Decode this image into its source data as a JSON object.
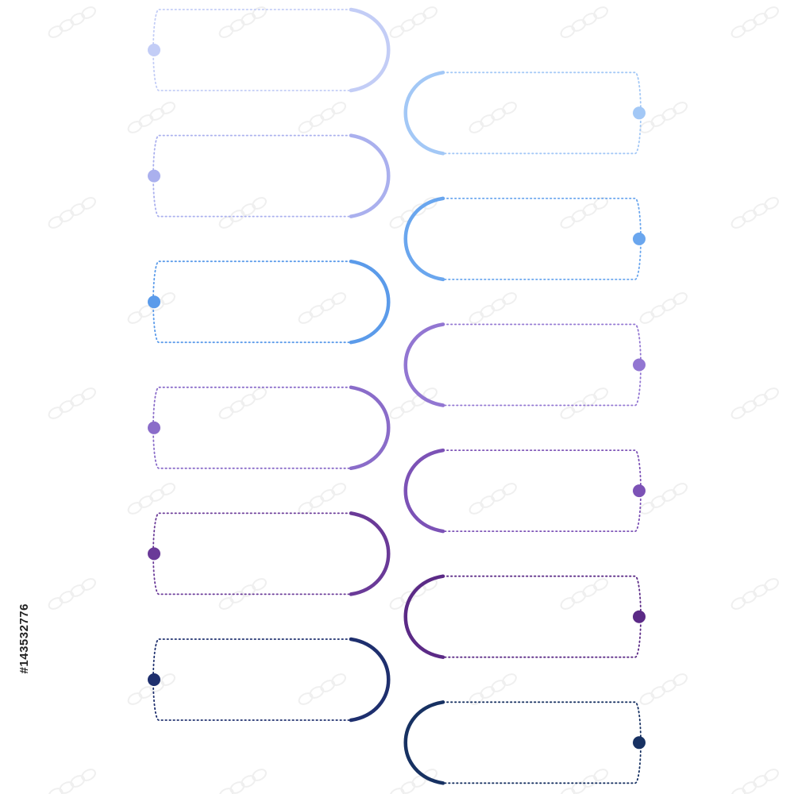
{
  "watermark_id": "#143532776",
  "steps": [
    {
      "side": "left",
      "color": "#c3cdf6"
    },
    {
      "side": "right",
      "color": "#a3c8f6"
    },
    {
      "side": "left",
      "color": "#aab0ee"
    },
    {
      "side": "right",
      "color": "#6aa6ee"
    },
    {
      "side": "left",
      "color": "#5b9bea"
    },
    {
      "side": "right",
      "color": "#9276d2"
    },
    {
      "side": "left",
      "color": "#8a6cc9"
    },
    {
      "side": "right",
      "color": "#7c52b6"
    },
    {
      "side": "left",
      "color": "#6a3a98"
    },
    {
      "side": "right",
      "color": "#5b2a86"
    },
    {
      "side": "left",
      "color": "#1e2f6e"
    },
    {
      "side": "right",
      "color": "#173162"
    }
  ]
}
